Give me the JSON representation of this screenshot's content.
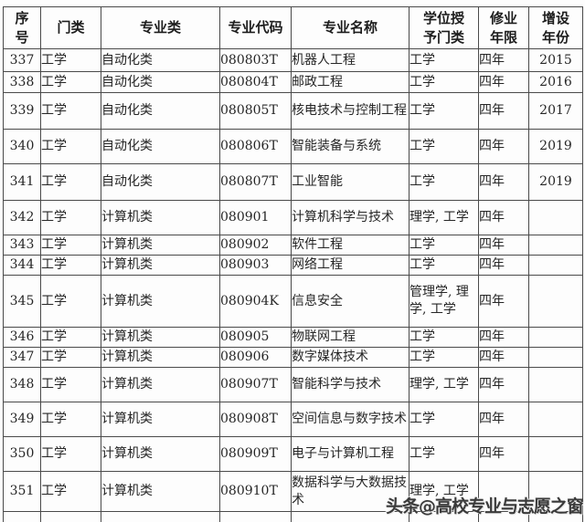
{
  "table": {
    "columns": [
      {
        "label": "序\n号"
      },
      {
        "label": "门类"
      },
      {
        "label": "专业类"
      },
      {
        "label": "专业代码"
      },
      {
        "label": "专业名称"
      },
      {
        "label": "学位授\n予门类"
      },
      {
        "label": "修业\n年限"
      },
      {
        "label": "增设\n年份"
      }
    ],
    "rows": [
      {
        "index": "337",
        "category": "工学",
        "major_class": "自动化类",
        "code": "080803T",
        "name": "机器人工程",
        "degree": "工学",
        "duration": "四年",
        "year": "2015"
      },
      {
        "index": "338",
        "category": "工学",
        "major_class": "自动化类",
        "code": "080804T",
        "name": "邮政工程",
        "degree": "工学",
        "duration": "四年",
        "year": "2016"
      },
      {
        "index": "339",
        "category": "工学",
        "major_class": "自动化类",
        "code": "080805T",
        "name": "核电技术与控制工程",
        "degree": "工学",
        "duration": "四年",
        "year": "2017"
      },
      {
        "index": "340",
        "category": "工学",
        "major_class": "自动化类",
        "code": "080806T",
        "name": "智能装备与系统",
        "degree": "工学",
        "duration": "四年",
        "year": "2019"
      },
      {
        "index": "341",
        "category": "工学",
        "major_class": "自动化类",
        "code": "080807T",
        "name": "工业智能",
        "degree": "工学",
        "duration": "四年",
        "year": "2019"
      },
      {
        "index": "342",
        "category": "工学",
        "major_class": "计算机类",
        "code": "080901",
        "name": "计算机科学与技术",
        "degree": "理学, 工学",
        "duration": "四年",
        "year": ""
      },
      {
        "index": "343",
        "category": "工学",
        "major_class": "计算机类",
        "code": "080902",
        "name": "软件工程",
        "degree": "工学",
        "duration": "四年",
        "year": ""
      },
      {
        "index": "344",
        "category": "工学",
        "major_class": "计算机类",
        "code": "080903",
        "name": "网络工程",
        "degree": "工学",
        "duration": "四年",
        "year": ""
      },
      {
        "index": "345",
        "category": "工学",
        "major_class": "计算机类",
        "code": "080904K",
        "name": "信息安全",
        "degree": "管理学, 理学, 工学",
        "duration": "四年",
        "year": ""
      },
      {
        "index": "346",
        "category": "工学",
        "major_class": "计算机类",
        "code": "080905",
        "name": "物联网工程",
        "degree": "工学",
        "duration": "四年",
        "year": ""
      },
      {
        "index": "347",
        "category": "工学",
        "major_class": "计算机类",
        "code": "080906",
        "name": "数字媒体技术",
        "degree": "工学",
        "duration": "四年",
        "year": ""
      },
      {
        "index": "348",
        "category": "工学",
        "major_class": "计算机类",
        "code": "080907T",
        "name": "智能科学与技术",
        "degree": "理学, 工学",
        "duration": "四年",
        "year": ""
      },
      {
        "index": "349",
        "category": "工学",
        "major_class": "计算机类",
        "code": "080908T",
        "name": "空间信息与数字技术",
        "degree": "工学",
        "duration": "四年",
        "year": ""
      },
      {
        "index": "350",
        "category": "工学",
        "major_class": "计算机类",
        "code": "080909T",
        "name": "电子与计算机工程",
        "degree": "工学",
        "duration": "四年",
        "year": ""
      },
      {
        "index": "351",
        "category": "工学",
        "major_class": "计算机类",
        "code": "080910T",
        "name": "数据科学与大数据技术",
        "degree": "理学, 工学",
        "duration": "",
        "year": ""
      }
    ]
  },
  "watermark": {
    "text": "头条@高校专业与志愿之窗",
    "color": "#3a3a3a"
  },
  "colors": {
    "border": "#4a4a4a",
    "text": "#262626",
    "background": "#fdfdfd"
  }
}
